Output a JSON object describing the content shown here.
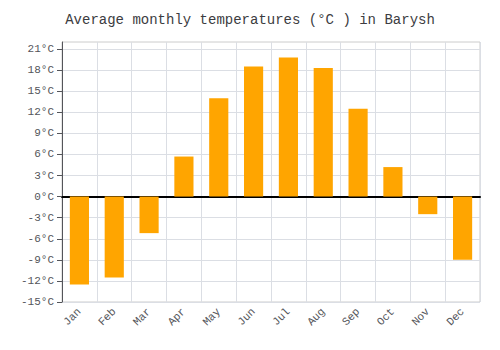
{
  "chart_data": {
    "type": "bar",
    "title": "Average monthly temperatures (°C ) in Barysh",
    "categories": [
      "Jan",
      "Feb",
      "Mar",
      "Apr",
      "May",
      "Jun",
      "Jul",
      "Aug",
      "Sep",
      "Oct",
      "Nov",
      "Dec"
    ],
    "values": [
      -12.5,
      -11.5,
      -5.2,
      5.7,
      14.0,
      18.5,
      19.8,
      18.3,
      12.5,
      4.2,
      -2.5,
      -9.0
    ],
    "color": "#FFA500",
    "ylim": [
      -15,
      22
    ],
    "yticks": [
      {
        "value": -15,
        "label": "-15°C"
      },
      {
        "value": -12,
        "label": "-12°C"
      },
      {
        "value": -9,
        "label": "-9°C"
      },
      {
        "value": -6,
        "label": "-6°C"
      },
      {
        "value": -3,
        "label": "-3°C"
      },
      {
        "value": 0,
        "label": "0°C"
      },
      {
        "value": 3,
        "label": "3°C"
      },
      {
        "value": 6,
        "label": "6°C"
      },
      {
        "value": 9,
        "label": "9°C"
      },
      {
        "value": 12,
        "label": "12°C"
      },
      {
        "value": 15,
        "label": "15°C"
      },
      {
        "value": 18,
        "label": "18°C"
      },
      {
        "value": 21,
        "label": "21°C"
      }
    ],
    "grid": true
  }
}
